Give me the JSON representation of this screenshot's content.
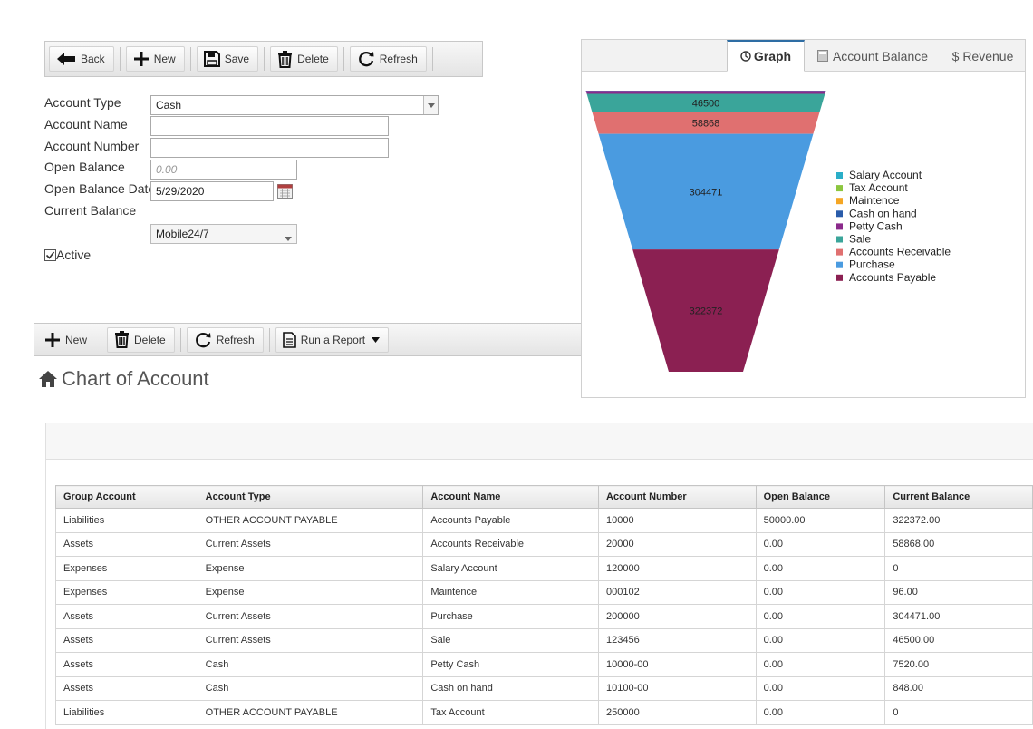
{
  "toolbar_top": {
    "back": "Back",
    "new": "New",
    "save": "Save",
    "delete": "Delete",
    "refresh": "Refresh"
  },
  "form": {
    "account_type_label": "Account Type",
    "account_type_value": "Cash",
    "account_name_label": "Account Name",
    "account_name_value": "",
    "account_number_label": "Account Number",
    "account_number_value": "",
    "open_balance_label": "Open Balance",
    "open_balance_placeholder": "0.00",
    "open_balance_date_label": "Open Balance Date",
    "open_balance_date_value": "5/29/2020",
    "current_balance_label": "Current Balance",
    "branch_value": "Mobile24/7",
    "active_label": "Active",
    "active_checked": true
  },
  "toolbar_bottom": {
    "new": "New",
    "delete": "Delete",
    "refresh": "Refresh",
    "run_report": "Run a Report"
  },
  "tabs": {
    "graph": "Graph",
    "account_balance": "Account Balance",
    "revenue": "$ Revenue"
  },
  "page_title": "Chart of Account",
  "colors": {
    "accent": "#2e6da4",
    "funnel_teal": "#3aa59a",
    "funnel_salmon": "#e07070",
    "funnel_blue": "#4a9be0",
    "funnel_maroon": "#8b2052"
  },
  "chart_data": {
    "type": "funnel",
    "series": [
      {
        "name": "Salary Account",
        "value": 0,
        "color": "#2aaec8"
      },
      {
        "name": "Tax Account",
        "value": 0,
        "color": "#8cc63f"
      },
      {
        "name": "Maintence",
        "value": 96,
        "color": "#f5a623"
      },
      {
        "name": "Cash on hand",
        "value": 848,
        "color": "#2a5caa"
      },
      {
        "name": "Petty Cash",
        "value": 7520,
        "color": "#8b2a8b"
      },
      {
        "name": "Sale",
        "value": 46500,
        "color": "#3aa59a"
      },
      {
        "name": "Accounts Receivable",
        "value": 58868,
        "color": "#e07070"
      },
      {
        "name": "Purchase",
        "value": 304471,
        "color": "#4a9be0"
      },
      {
        "name": "Accounts Payable",
        "value": 322372,
        "color": "#8b2052"
      }
    ],
    "data_labels": [
      "46500",
      "58868",
      "304471",
      "322372"
    ],
    "legend_position": "right"
  },
  "table": {
    "headers": [
      "Group Account",
      "Account Type",
      "Account Name",
      "Account Number",
      "Open Balance",
      "Current Balance"
    ],
    "rows": [
      [
        "Liabilities",
        "OTHER ACCOUNT PAYABLE",
        "Accounts Payable",
        "10000",
        "50000.00",
        "322372.00"
      ],
      [
        "Assets",
        "Current Assets",
        "Accounts Receivable",
        "20000",
        "0.00",
        "58868.00"
      ],
      [
        "Expenses",
        "Expense",
        "Salary Account",
        "120000",
        "0.00",
        "0"
      ],
      [
        "Expenses",
        "Expense",
        "Maintence",
        "000102",
        "0.00",
        "96.00"
      ],
      [
        "Assets",
        "Current Assets",
        "Purchase",
        "200000",
        "0.00",
        "304471.00"
      ],
      [
        "Assets",
        "Current Assets",
        "Sale",
        "123456",
        "0.00",
        "46500.00"
      ],
      [
        "Assets",
        "Cash",
        "Petty Cash",
        "10000-00",
        "0.00",
        "7520.00"
      ],
      [
        "Assets",
        "Cash",
        "Cash on hand",
        "10100-00",
        "0.00",
        "848.00"
      ],
      [
        "Liabilities",
        "OTHER ACCOUNT PAYABLE",
        "Tax Account",
        "250000",
        "0.00",
        "0"
      ]
    ]
  }
}
